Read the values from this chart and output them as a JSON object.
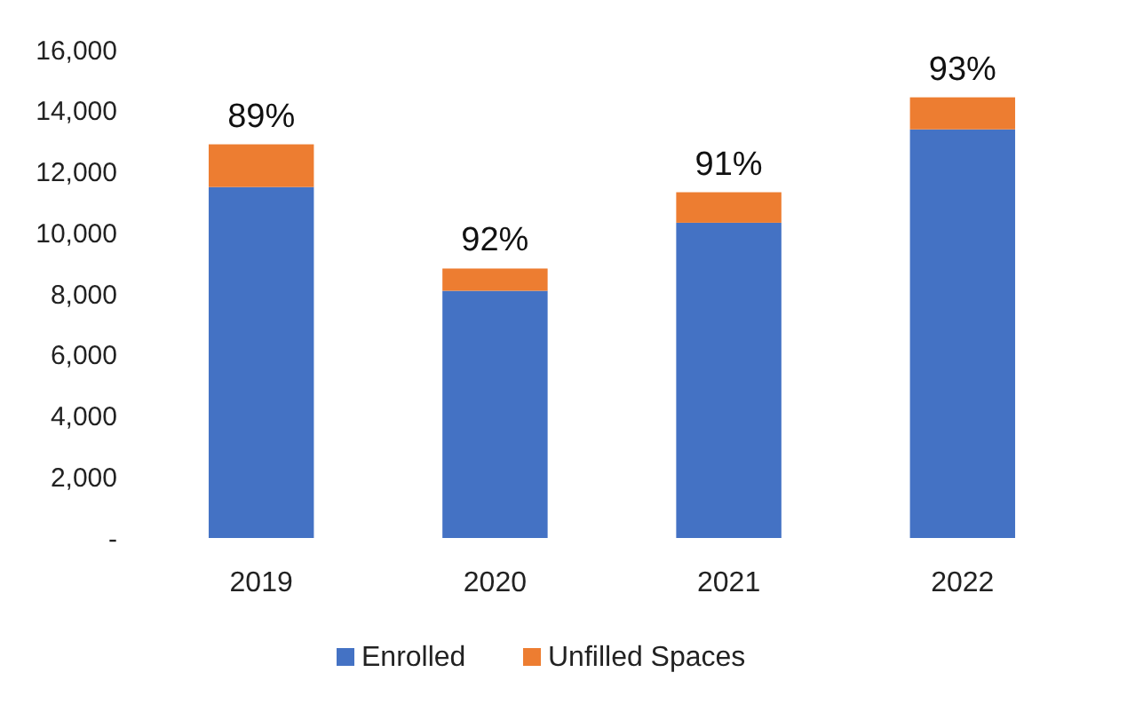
{
  "chart_data": {
    "type": "bar",
    "stacked": true,
    "categories": [
      "2019",
      "2020",
      "2021",
      "2022"
    ],
    "series": [
      {
        "name": "Enrolled",
        "color": "#4472c4",
        "values": [
          11500,
          8100,
          10330,
          13390
        ]
      },
      {
        "name": "Unfilled Spaces",
        "color": "#ed7d31",
        "values": [
          1400,
          730,
          1000,
          1050
        ]
      }
    ],
    "ylim": [
      0,
      16000
    ],
    "yticks": [
      {
        "value": 0,
        "label": "-"
      },
      {
        "value": 2000,
        "label": "2,000"
      },
      {
        "value": 4000,
        "label": "4,000"
      },
      {
        "value": 6000,
        "label": "6,000"
      },
      {
        "value": 8000,
        "label": "8,000"
      },
      {
        "value": 10000,
        "label": "10,000"
      },
      {
        "value": 12000,
        "label": "12,000"
      },
      {
        "value": 14000,
        "label": "14,000"
      },
      {
        "value": 16000,
        "label": "16,000"
      }
    ],
    "annotations": [
      {
        "text": "89%",
        "x": "2019",
        "y": 12900
      },
      {
        "text": "92%",
        "x": "2020",
        "y": 8830
      },
      {
        "text": "91%",
        "x": "2021",
        "y": 11330
      },
      {
        "text": "93%",
        "x": "2022",
        "y": 14440
      }
    ],
    "legend": "bottom",
    "grid": false
  }
}
